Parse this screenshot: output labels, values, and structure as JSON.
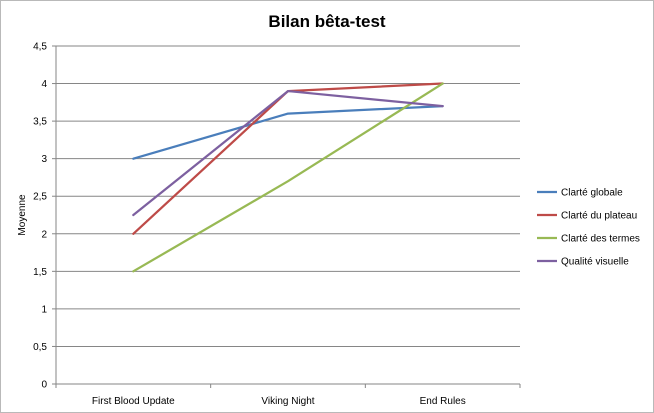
{
  "chart_data": {
    "type": "line",
    "title": "Bilan bêta-test",
    "xlabel": "",
    "ylabel": "Moyenne",
    "categories": [
      "First Blood Update",
      "Viking Night",
      "End Rules"
    ],
    "ylim": [
      0,
      4.5
    ],
    "yticks": [
      "0",
      "0,5",
      "1",
      "1,5",
      "2",
      "2,5",
      "3",
      "3,5",
      "4",
      "4,5"
    ],
    "grid": true,
    "legend": "right",
    "series": [
      {
        "name": "Clarté globale",
        "color": "#4a7ebb",
        "values": [
          3.0,
          3.6,
          3.7
        ]
      },
      {
        "name": "Clarté du plateau",
        "color": "#be4b48",
        "values": [
          2.0,
          3.9,
          4.0
        ]
      },
      {
        "name": "Clarté des termes",
        "color": "#98b954",
        "values": [
          1.5,
          2.7,
          4.0
        ]
      },
      {
        "name": "Qualité visuelle",
        "color": "#7d60a0",
        "values": [
          2.25,
          3.9,
          3.7
        ]
      }
    ]
  }
}
